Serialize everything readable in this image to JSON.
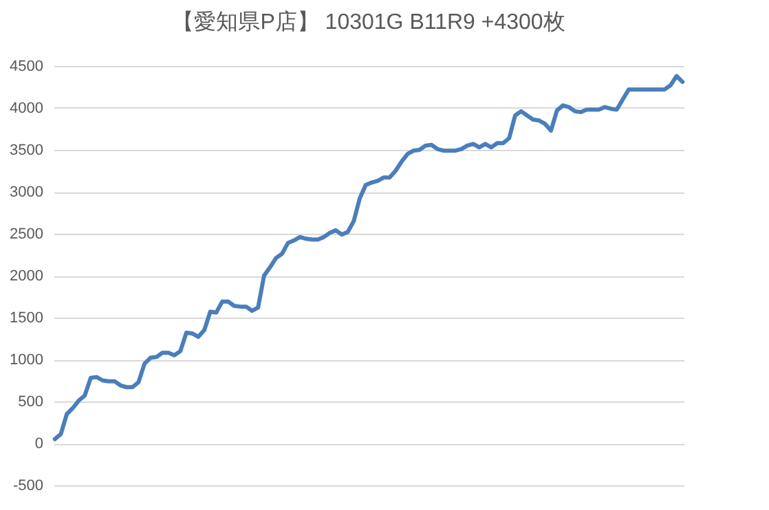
{
  "chart_data": {
    "type": "line",
    "title": "【愛知県P店】 10301G  B11R9  +4300枚",
    "categories": [
      null,
      null,
      null,
      null,
      null,
      null,
      null,
      null,
      null,
      null,
      null,
      null,
      null,
      null,
      null,
      null,
      null,
      null,
      null,
      null,
      null,
      null,
      null,
      null,
      null,
      null,
      null,
      null,
      null,
      null,
      null,
      null,
      null,
      null,
      null,
      null,
      null,
      null,
      null,
      null,
      null,
      null,
      null,
      null,
      null,
      null,
      null,
      null,
      null,
      null,
      null,
      null,
      null,
      null,
      null,
      null,
      null,
      null,
      null,
      null,
      null,
      null,
      null,
      null,
      null,
      null,
      null,
      null,
      null,
      null,
      null,
      null,
      null,
      null,
      null,
      null,
      null,
      null,
      null,
      null,
      null,
      null,
      null,
      null,
      null,
      null,
      null,
      null,
      null,
      null,
      null,
      null,
      null,
      null,
      null,
      null,
      null,
      null,
      null,
      null,
      null,
      null,
      null,
      null,
      null,
      null
    ],
    "series": [
      {
        "color": "#4a7ebb",
        "values": [
          50,
          110,
          350,
          420,
          510,
          570,
          780,
          790,
          750,
          740,
          740,
          690,
          670,
          670,
          730,
          950,
          1020,
          1030,
          1080,
          1080,
          1050,
          1100,
          1320,
          1310,
          1270,
          1350,
          1570,
          1560,
          1690,
          1690,
          1640,
          1630,
          1630,
          1580,
          1620,
          2000,
          2100,
          2210,
          2260,
          2390,
          2420,
          2460,
          2440,
          2430,
          2430,
          2460,
          2510,
          2540,
          2490,
          2520,
          2650,
          2920,
          3080,
          3110,
          3130,
          3170,
          3170,
          3250,
          3360,
          3450,
          3490,
          3500,
          3550,
          3560,
          3510,
          3490,
          3490,
          3490,
          3510,
          3550,
          3570,
          3530,
          3570,
          3530,
          3580,
          3580,
          3640,
          3910,
          3960,
          3910,
          3860,
          3850,
          3810,
          3730,
          3970,
          4030,
          4010,
          3960,
          3950,
          3980,
          3980,
          3980,
          4010,
          3990,
          3980,
          4100,
          4220,
          4220,
          4220,
          4220,
          4220,
          4220,
          4220,
          4270,
          4380,
          4310
        ]
      }
    ],
    "ylim": [
      -500,
      4500
    ],
    "yticks": [
      -500,
      0,
      500,
      1000,
      1500,
      2000,
      2500,
      3000,
      3500,
      4000,
      4500
    ],
    "grid": "y",
    "tick_labels": "y",
    "legend": false,
    "marker": "none",
    "line_style": "solid"
  }
}
